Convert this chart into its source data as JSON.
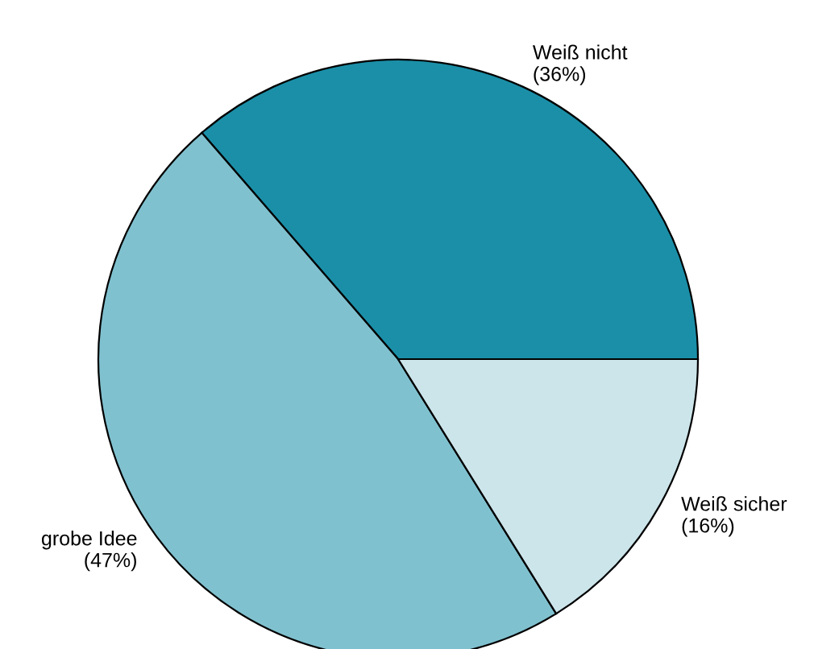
{
  "chart_data": {
    "type": "pie",
    "categories": [
      "Weiß nicht",
      "grobe Idee",
      "Weiß sicher"
    ],
    "values": [
      36,
      47,
      16
    ],
    "value_labels": [
      "(36%)",
      "(47%)",
      "(16%)"
    ],
    "colors": [
      "#1b8fa8",
      "#80c1cf",
      "#cce5eb"
    ]
  }
}
